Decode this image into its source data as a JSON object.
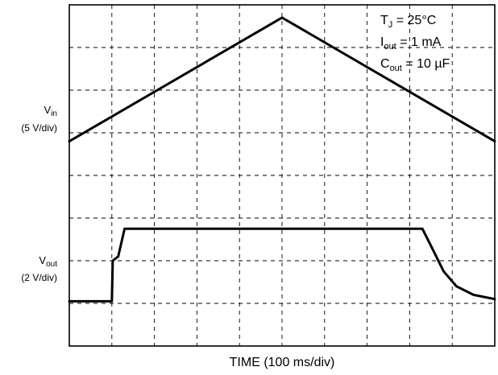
{
  "chart_data": {
    "type": "line",
    "title": "",
    "xlabel": "TIME (100 ms/div)",
    "x_divisions": 10,
    "y_divisions": 8,
    "grid": "dashed",
    "conditions": [
      {
        "base": "T",
        "sub": "J",
        "rest": " = 25°C"
      },
      {
        "base": "I",
        "sub": "out",
        "rest": " = 1 mA"
      },
      {
        "base": "C",
        "sub": "out",
        "rest": " = 10 µF"
      }
    ],
    "series": [
      {
        "name": "Vin",
        "label_base": "V",
        "label_sub": "in",
        "scale": "(5 V/div)",
        "x_unit": "div",
        "y_unit": "div",
        "points": [
          [
            0,
            4.8
          ],
          [
            5,
            7.7
          ],
          [
            10,
            4.8
          ]
        ]
      },
      {
        "name": "Vout",
        "label_base": "V",
        "label_sub": "out",
        "scale": "(2 V/div)",
        "x_unit": "div",
        "y_unit": "div",
        "points": [
          [
            0,
            1.05
          ],
          [
            1.0,
            1.05
          ],
          [
            1.02,
            2.0
          ],
          [
            1.15,
            2.1
          ],
          [
            1.3,
            2.75
          ],
          [
            8.3,
            2.75
          ],
          [
            8.5,
            2.35
          ],
          [
            8.8,
            1.75
          ],
          [
            9.1,
            1.4
          ],
          [
            9.5,
            1.2
          ],
          [
            10,
            1.1
          ]
        ]
      }
    ]
  }
}
